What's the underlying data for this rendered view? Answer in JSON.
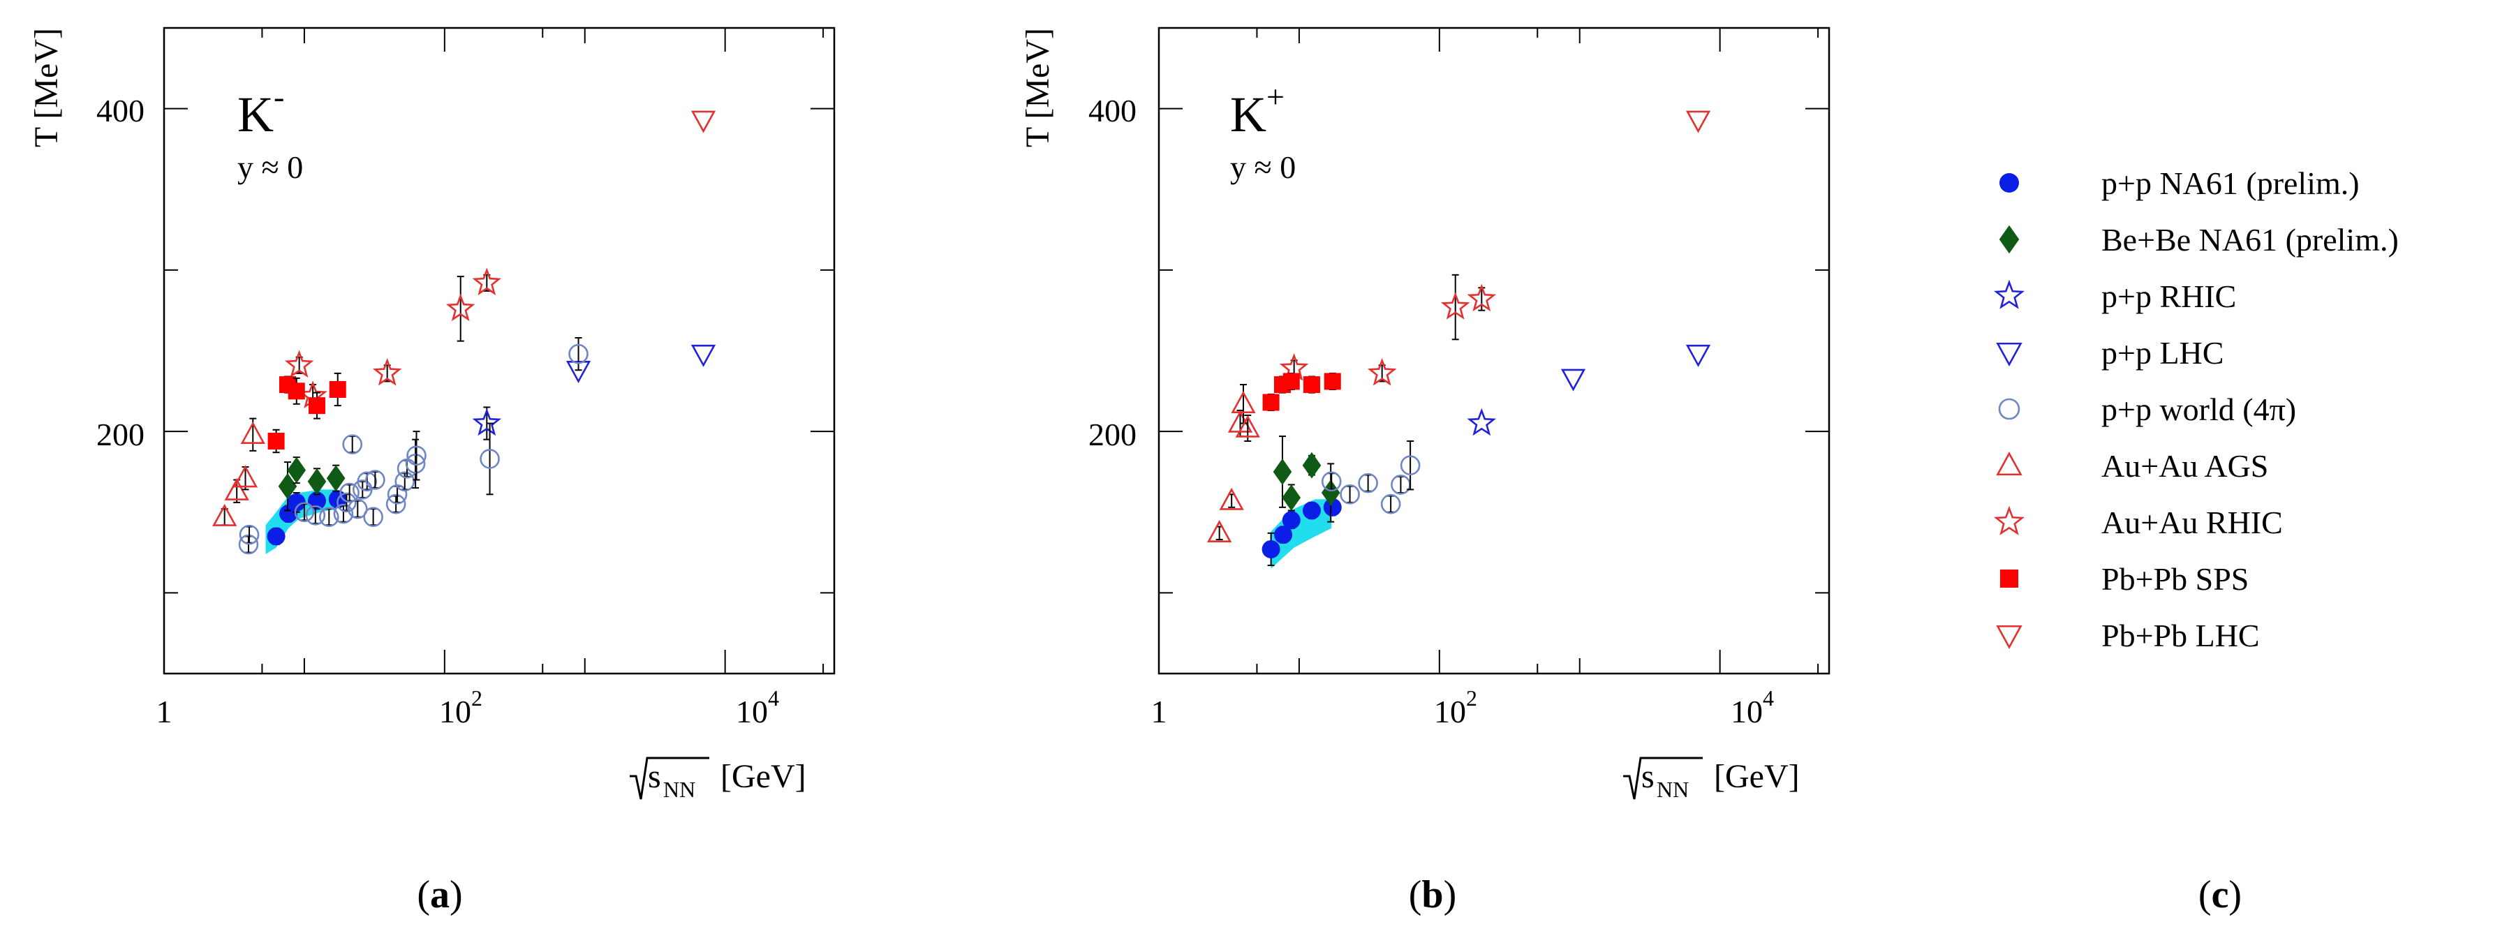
{
  "panels": [
    {
      "id": "a",
      "caption_letter": "a",
      "particle": {
        "base": "K",
        "charge": "-"
      },
      "rapidity": "y ≈ 0",
      "ylabel": "T [MeV]",
      "xlabel": {
        "root_sub": "NN",
        "unit": "[GeV]"
      },
      "x_ticks": [
        {
          "base": "1",
          "exp": ""
        },
        {
          "base": "10",
          "exp": "2"
        },
        {
          "base": "10",
          "exp": "4"
        }
      ],
      "y_ticks": [
        "200",
        "400"
      ]
    },
    {
      "id": "b",
      "caption_letter": "b",
      "particle": {
        "base": "K",
        "charge": "+"
      },
      "rapidity": "y ≈ 0",
      "ylabel": "T [MeV]",
      "xlabel": {
        "root_sub": "NN",
        "unit": "[GeV]"
      },
      "x_ticks": [
        {
          "base": "1",
          "exp": ""
        },
        {
          "base": "10",
          "exp": "2"
        },
        {
          "base": "10",
          "exp": "4"
        }
      ],
      "y_ticks": [
        "200",
        "400"
      ]
    }
  ],
  "legend_caption_letter": "c",
  "chart_data": [
    {
      "panel": "a",
      "type": "scatter",
      "title": "K-",
      "xlabel": "√sNN [GeV]",
      "ylabel": "T [MeV]",
      "x_scale": "log",
      "xlim": [
        1,
        60000
      ],
      "ylim": [
        50,
        450
      ],
      "grid": false,
      "band": {
        "series": "p+p NA61 (prelim.)",
        "color": "#22ddee",
        "lower": [
          [
            5.3,
            124
          ],
          [
            6.3,
            128
          ],
          [
            7.7,
            140
          ],
          [
            9.2,
            146
          ],
          [
            13,
            150
          ],
          [
            17,
            152
          ]
        ],
        "upper": [
          [
            5.3,
            142
          ],
          [
            6.3,
            150
          ],
          [
            7.7,
            160
          ],
          [
            9.2,
            162
          ],
          [
            13,
            164
          ],
          [
            17,
            164
          ]
        ]
      },
      "series": [
        {
          "name": "p+p NA61 (prelim.)",
          "marker": "circle",
          "filled": true,
          "color": "#0a1ee6",
          "points": [
            {
              "x": 6.3,
              "y": 135,
              "err": 5
            },
            {
              "x": 7.7,
              "y": 149,
              "err": 5
            },
            {
              "x": 8.8,
              "y": 156,
              "err": 6
            },
            {
              "x": 12.3,
              "y": 157,
              "err": 5
            },
            {
              "x": 17.3,
              "y": 158,
              "err": 5
            }
          ]
        },
        {
          "name": "Be+Be NA61 (prelim.)",
          "marker": "diamond",
          "filled": true,
          "color": "#0f5a14",
          "points": [
            {
              "x": 7.6,
              "y": 166,
              "err": 15
            },
            {
              "x": 8.8,
              "y": 176,
              "err": 8
            },
            {
              "x": 12.3,
              "y": 169,
              "err": 8
            },
            {
              "x": 16.8,
              "y": 171,
              "err": 8
            }
          ]
        },
        {
          "name": "p+p RHIC",
          "marker": "star",
          "filled": false,
          "color": "#2020dd",
          "points": [
            {
              "x": 200,
              "y": 205,
              "err": 10
            }
          ]
        },
        {
          "name": "p+p LHC",
          "marker": "triangle-down",
          "filled": false,
          "color": "#2020dd",
          "points": [
            {
              "x": 900,
              "y": 238
            },
            {
              "x": 7000,
              "y": 248
            }
          ]
        },
        {
          "name": "p+p world (4π)",
          "marker": "circle",
          "filled": false,
          "color": "#6f86c4",
          "points": [
            {
              "x": 4,
              "y": 130,
              "err": 5
            },
            {
              "x": 4.05,
              "y": 136,
              "err": 5
            },
            {
              "x": 10,
              "y": 150,
              "err": 5
            },
            {
              "x": 12,
              "y": 148,
              "err": 5
            },
            {
              "x": 15,
              "y": 147,
              "err": 5
            },
            {
              "x": 19,
              "y": 149,
              "err": 5
            },
            {
              "x": 20,
              "y": 156,
              "err": 5
            },
            {
              "x": 21,
              "y": 162,
              "err": 5
            },
            {
              "x": 22,
              "y": 192,
              "err": 5
            },
            {
              "x": 24,
              "y": 152,
              "err": 5
            },
            {
              "x": 26,
              "y": 164,
              "err": 5
            },
            {
              "x": 28,
              "y": 169,
              "err": 5
            },
            {
              "x": 31,
              "y": 147,
              "err": 5
            },
            {
              "x": 32,
              "y": 170,
              "err": 5
            },
            {
              "x": 45,
              "y": 155,
              "err": 5
            },
            {
              "x": 46,
              "y": 161,
              "err": 5
            },
            {
              "x": 52,
              "y": 169,
              "err": 5
            },
            {
              "x": 54,
              "y": 177,
              "err": 5
            },
            {
              "x": 62,
              "y": 180,
              "err": 15
            },
            {
              "x": 63,
              "y": 185,
              "err": 15
            },
            {
              "x": 210,
              "y": 183,
              "err": 22
            },
            {
              "x": 900,
              "y": 248,
              "err": 10
            }
          ]
        },
        {
          "name": "Au+Au AGS",
          "marker": "triangle-up",
          "filled": false,
          "color": "#e53030",
          "points": [
            {
              "x": 2.7,
              "y": 147,
              "err": 5
            },
            {
              "x": 3.3,
              "y": 163,
              "err": 7
            },
            {
              "x": 3.8,
              "y": 171,
              "err": 7
            },
            {
              "x": 4.3,
              "y": 198,
              "err": 10
            }
          ]
        },
        {
          "name": "Au+Au RHIC",
          "marker": "star",
          "filled": false,
          "color": "#e53030",
          "points": [
            {
              "x": 9.2,
              "y": 241,
              "err": 5
            },
            {
              "x": 11.5,
              "y": 222,
              "err": 7
            },
            {
              "x": 39,
              "y": 236,
              "err": 5
            },
            {
              "x": 130,
              "y": 276,
              "err": 20
            },
            {
              "x": 200,
              "y": 292,
              "err": 5
            }
          ]
        },
        {
          "name": "Pb+Pb SPS",
          "marker": "square",
          "filled": true,
          "color": "#ff0000",
          "points": [
            {
              "x": 6.3,
              "y": 194,
              "err": 7
            },
            {
              "x": 7.6,
              "y": 229,
              "err": 5
            },
            {
              "x": 8.8,
              "y": 225,
              "err": 8
            },
            {
              "x": 12.3,
              "y": 216,
              "err": 8
            },
            {
              "x": 17.3,
              "y": 226,
              "err": 10
            }
          ]
        },
        {
          "name": "Pb+Pb LHC",
          "marker": "triangle-down",
          "filled": false,
          "color": "#e53030",
          "points": [
            {
              "x": 7000,
              "y": 393
            }
          ]
        }
      ]
    },
    {
      "panel": "b",
      "type": "scatter",
      "title": "K+",
      "xlabel": "√sNN [GeV]",
      "ylabel": "T [MeV]",
      "x_scale": "log",
      "xlim": [
        1,
        60000
      ],
      "ylim": [
        50,
        450
      ],
      "grid": false,
      "band": {
        "series": "p+p NA61 (prelim.)",
        "color": "#22ddee",
        "lower": [
          [
            6.3,
            115
          ],
          [
            7.7,
            122
          ],
          [
            9.2,
            128
          ],
          [
            13,
            135
          ],
          [
            17,
            140
          ]
        ],
        "upper": [
          [
            6.3,
            138
          ],
          [
            7.7,
            146
          ],
          [
            9.2,
            152
          ],
          [
            13,
            158
          ],
          [
            17,
            158
          ]
        ]
      },
      "series": [
        {
          "name": "p+p NA61 (prelim.)",
          "marker": "circle",
          "filled": true,
          "color": "#0a1ee6",
          "points": [
            {
              "x": 6.3,
              "y": 127,
              "err": 10
            },
            {
              "x": 7.7,
              "y": 136,
              "err": 5
            },
            {
              "x": 8.8,
              "y": 145,
              "err": 5
            },
            {
              "x": 12.3,
              "y": 151,
              "err": 5
            },
            {
              "x": 17.3,
              "y": 153,
              "err": 5
            }
          ]
        },
        {
          "name": "Be+Be NA61 (prelim.)",
          "marker": "diamond",
          "filled": true,
          "color": "#0f5a14",
          "points": [
            {
              "x": 7.6,
              "y": 175,
              "err": 22
            },
            {
              "x": 8.8,
              "y": 159,
              "err": 8
            },
            {
              "x": 12.3,
              "y": 179,
              "err": 6
            },
            {
              "x": 16.8,
              "y": 162,
              "err": 18
            }
          ]
        },
        {
          "name": "p+p RHIC",
          "marker": "star",
          "filled": false,
          "color": "#2020dd",
          "points": [
            {
              "x": 200,
              "y": 205
            }
          ]
        },
        {
          "name": "p+p LHC",
          "marker": "triangle-down",
          "filled": false,
          "color": "#2020dd",
          "points": [
            {
              "x": 900,
              "y": 233
            },
            {
              "x": 7000,
              "y": 248
            }
          ]
        },
        {
          "name": "p+p world (4π)",
          "marker": "circle",
          "filled": false,
          "color": "#6f86c4",
          "points": [
            {
              "x": 17,
              "y": 169,
              "err": 5
            },
            {
              "x": 23,
              "y": 161,
              "err": 5
            },
            {
              "x": 31,
              "y": 168,
              "err": 5
            },
            {
              "x": 45,
              "y": 155,
              "err": 5
            },
            {
              "x": 53,
              "y": 167,
              "err": 5
            },
            {
              "x": 62,
              "y": 179,
              "err": 15
            }
          ]
        },
        {
          "name": "Au+Au AGS",
          "marker": "triangle-up",
          "filled": false,
          "color": "#e53030",
          "points": [
            {
              "x": 2.7,
              "y": 137,
              "err": 4
            },
            {
              "x": 3.3,
              "y": 157,
              "err": 4
            },
            {
              "x": 3.8,
              "y": 205,
              "err": 8
            },
            {
              "x": 4.0,
              "y": 217,
              "err": 12
            },
            {
              "x": 4.3,
              "y": 202,
              "err": 8
            }
          ]
        },
        {
          "name": "Au+Au RHIC",
          "marker": "star",
          "filled": false,
          "color": "#e53030",
          "points": [
            {
              "x": 9.2,
              "y": 239,
              "err": 5
            },
            {
              "x": 39,
              "y": 236,
              "err": 5
            },
            {
              "x": 130,
              "y": 277,
              "err": 20
            },
            {
              "x": 200,
              "y": 282,
              "err": 7
            }
          ]
        },
        {
          "name": "Pb+Pb SPS",
          "marker": "square",
          "filled": true,
          "color": "#ff0000",
          "points": [
            {
              "x": 6.3,
              "y": 218,
              "err": 5
            },
            {
              "x": 7.6,
              "y": 229,
              "err": 5
            },
            {
              "x": 8.8,
              "y": 231,
              "err": 5
            },
            {
              "x": 12.3,
              "y": 229,
              "err": 5
            },
            {
              "x": 17.3,
              "y": 231,
              "err": 5
            }
          ]
        },
        {
          "name": "Pb+Pb LHC",
          "marker": "triangle-down",
          "filled": false,
          "color": "#e53030",
          "points": [
            {
              "x": 7000,
              "y": 393
            }
          ]
        }
      ]
    }
  ],
  "legend": [
    {
      "label": "p+p NA61 (prelim.)",
      "marker": "circle",
      "filled": true,
      "color": "#0a1ee6"
    },
    {
      "label": "Be+Be NA61 (prelim.)",
      "marker": "diamond",
      "filled": true,
      "color": "#0f5a14"
    },
    {
      "label": "p+p RHIC",
      "marker": "star",
      "filled": false,
      "color": "#2020dd"
    },
    {
      "label": "p+p LHC",
      "marker": "triangle-down",
      "filled": false,
      "color": "#2020dd"
    },
    {
      "label": "p+p world (4π)",
      "marker": "circle",
      "filled": false,
      "color": "#6f86c4"
    },
    {
      "label": "Au+Au AGS",
      "marker": "triangle-up",
      "filled": false,
      "color": "#e53030"
    },
    {
      "label": "Au+Au RHIC",
      "marker": "star",
      "filled": false,
      "color": "#e53030"
    },
    {
      "label": "Pb+Pb SPS",
      "marker": "square",
      "filled": true,
      "color": "#ff0000"
    },
    {
      "label": "Pb+Pb LHC",
      "marker": "triangle-down",
      "filled": false,
      "color": "#e53030"
    }
  ]
}
